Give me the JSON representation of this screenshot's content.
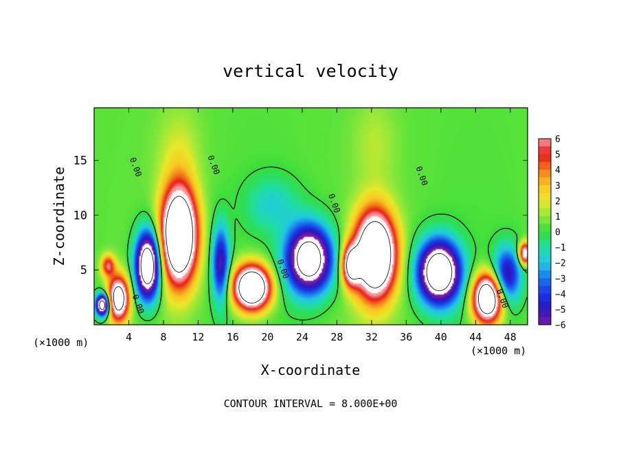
{
  "chart_data": {
    "type": "heatmap",
    "title": "vertical velocity",
    "xlabel": "X-coordinate",
    "ylabel": "Z-coordinate",
    "x_unit_left": "(×1000 m)",
    "x_unit_right": "(×1000 m)",
    "xlim": [
      0,
      50
    ],
    "ylim": [
      0,
      19.8
    ],
    "x_ticks": [
      4,
      8,
      12,
      16,
      20,
      24,
      28,
      32,
      36,
      40,
      44,
      48
    ],
    "y_ticks": [
      5,
      10,
      15
    ],
    "colorbar": {
      "ticks": [
        6,
        5,
        4,
        3,
        2,
        1,
        0,
        -1,
        -2,
        -3,
        -4,
        -5,
        -6
      ],
      "range": [
        -6,
        6
      ]
    },
    "contour_label": "0.00",
    "contour_interval": "CONTOUR INTERVAL = 8.000E+00",
    "features": [
      {
        "kind": "updraft",
        "x": 2.8,
        "z": 2.4,
        "sx": 1.2,
        "sz": 2.0,
        "amp": 10
      },
      {
        "kind": "updraft",
        "x": 1.6,
        "z": 5.4,
        "sx": 0.8,
        "sz": 1.0,
        "amp": 5
      },
      {
        "kind": "updraft",
        "x": 9.8,
        "z": 8.2,
        "sx": 2.0,
        "sz": 4.3,
        "amp": 14
      },
      {
        "kind": "updraft",
        "x": 18.2,
        "z": 3.4,
        "sx": 2.1,
        "sz": 2.0,
        "amp": 13
      },
      {
        "kind": "updraft",
        "x": 29.6,
        "z": 5.4,
        "sx": 1.0,
        "sz": 1.8,
        "amp": 8
      },
      {
        "kind": "updraft",
        "x": 32.4,
        "z": 6.4,
        "sx": 2.3,
        "sz": 3.8,
        "amp": 14
      },
      {
        "kind": "updraft",
        "x": 45.4,
        "z": 2.4,
        "sx": 1.7,
        "sz": 2.2,
        "amp": 12
      },
      {
        "kind": "updraft",
        "x": 49.7,
        "z": 6.5,
        "sx": 0.7,
        "sz": 1.0,
        "amp": 8
      },
      {
        "kind": "downdraft",
        "x": 1.0,
        "z": 1.8,
        "sx": 0.8,
        "sz": 1.0,
        "amp": 11
      },
      {
        "kind": "downdraft",
        "x": 6.2,
        "z": 5.4,
        "sx": 1.4,
        "sz": 3.0,
        "amp": 12
      },
      {
        "kind": "downdraft",
        "x": 14.6,
        "z": 5.5,
        "sx": 1.0,
        "sz": 3.5,
        "amp": 6
      },
      {
        "kind": "downdraft",
        "x": 24.8,
        "z": 6.0,
        "sx": 2.6,
        "sz": 3.0,
        "amp": 11
      },
      {
        "kind": "downdraft",
        "x": 39.8,
        "z": 4.8,
        "sx": 2.4,
        "sz": 2.8,
        "amp": 12
      },
      {
        "kind": "downdraft",
        "x": 47.6,
        "z": 4.5,
        "sx": 1.6,
        "sz": 2.5,
        "amp": 6
      },
      {
        "kind": "downdraft",
        "x": 20.5,
        "z": 11.0,
        "sx": 3.0,
        "sz": 2.5,
        "amp": 2
      },
      {
        "kind": "updraft",
        "x": 9.8,
        "z": 16.0,
        "sx": 2.5,
        "sz": 4.0,
        "amp": 1.2
      },
      {
        "kind": "updraft",
        "x": 32.4,
        "z": 16.5,
        "sx": 2.5,
        "sz": 4.0,
        "amp": 1.0
      }
    ]
  }
}
